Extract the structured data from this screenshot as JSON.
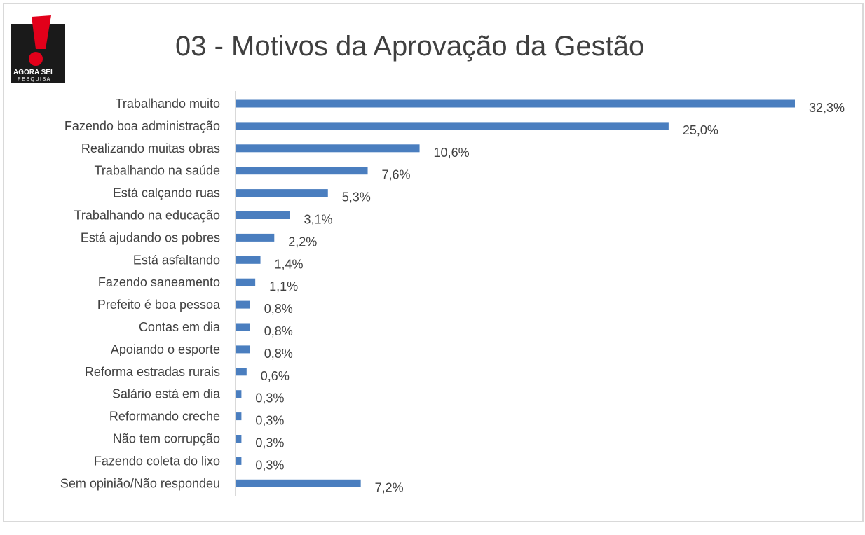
{
  "logo": {
    "line1": "AGORA SEI",
    "line2": "PESQUISA",
    "icon": "exclamation-mark-logo",
    "colors": {
      "red": "#e2001a",
      "dark": "#1a1a1a"
    }
  },
  "title": "03 - Motivos da Aprovação da Gestão",
  "chart_data": {
    "type": "bar",
    "orientation": "horizontal",
    "bar_color": "#4a7ebf",
    "categories": [
      "Trabalhando muito",
      "Fazendo boa administração",
      "Realizando muitas obras",
      "Trabalhando na saúde",
      "Está calçando ruas",
      "Trabalhando na educação",
      "Está ajudando os pobres",
      "Está asfaltando",
      "Fazendo saneamento",
      "Prefeito é boa pessoa",
      "Contas em dia",
      "Apoiando o esporte",
      "Reforma estradas rurais",
      "Salário está em dia",
      "Reformando creche",
      "Não tem corrupção",
      "Fazendo coleta do lixo",
      "Sem opinião/Não respondeu"
    ],
    "values": [
      32.3,
      25.0,
      10.6,
      7.6,
      5.3,
      3.1,
      2.2,
      1.4,
      1.1,
      0.8,
      0.8,
      0.8,
      0.6,
      0.3,
      0.3,
      0.3,
      0.3,
      7.2
    ],
    "value_labels": [
      "32,3%",
      "25,0%",
      "10,6%",
      "7,6%",
      "5,3%",
      "3,1%",
      "2,2%",
      "1,4%",
      "1,1%",
      "0,8%",
      "0,8%",
      "0,8%",
      "0,6%",
      "0,3%",
      "0,3%",
      "0,3%",
      "0,3%",
      "7,2%"
    ],
    "xlim": [
      0,
      32.3
    ],
    "grid": false,
    "legend": "none"
  }
}
